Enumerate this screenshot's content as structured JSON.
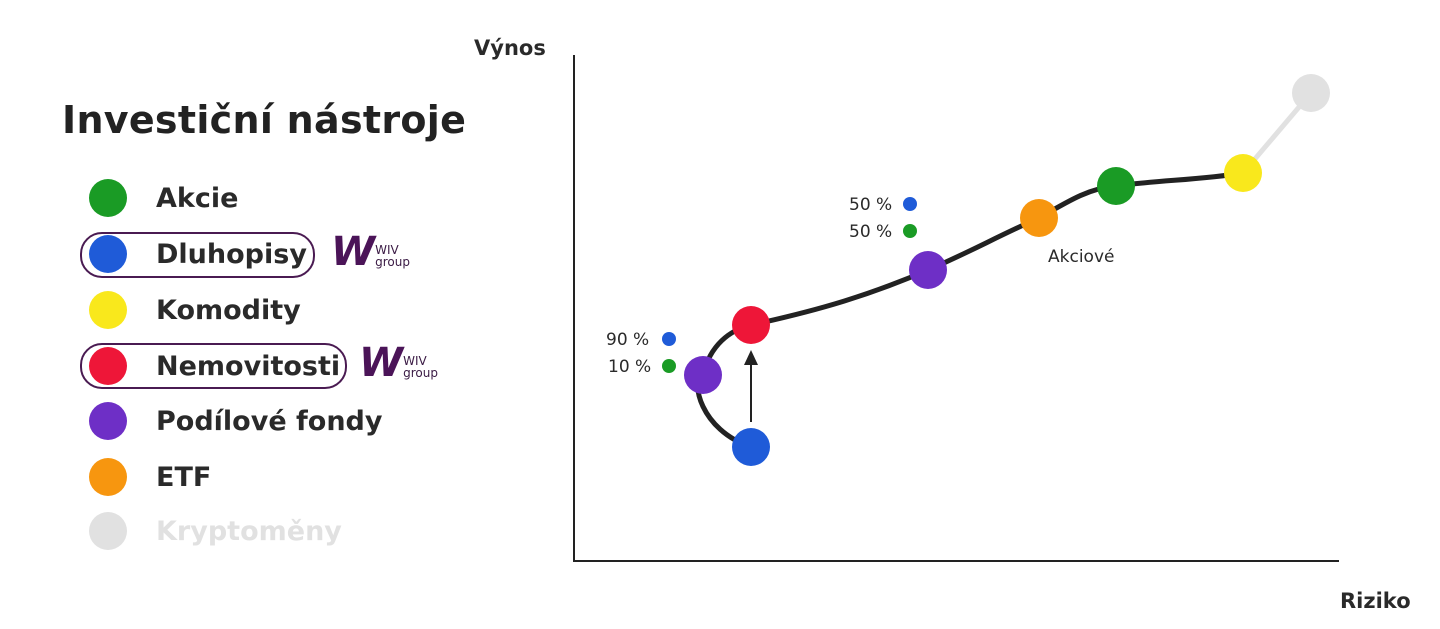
{
  "legend": {
    "title": "Investiční nástroje",
    "items": [
      {
        "label": "Akcie",
        "color": "#1a9b25"
      },
      {
        "label": "Dluhopisy",
        "color": "#1f5bd8",
        "highlighted": true
      },
      {
        "label": "Komodity",
        "color": "#f9e81c"
      },
      {
        "label": "Nemovitosti",
        "color": "#ee1638",
        "highlighted": true
      },
      {
        "label": "Podílové fondy",
        "color": "#6e2fc6"
      },
      {
        "label": "ETF",
        "color": "#f7960f"
      },
      {
        "label": "Kryptoměny",
        "color": "#e1e1e1",
        "faded": true
      }
    ],
    "logo": {
      "mark": "W",
      "text1": "WIV",
      "text2": "group"
    }
  },
  "diagram": {
    "y_axis_label": "Výnos",
    "x_axis_label": "Riziko",
    "mix1": {
      "pct_bonds": "90 %",
      "pct_stocks": "10 %"
    },
    "mix2": {
      "pct_bonds": "50 %",
      "pct_stocks": "50 %"
    },
    "etf_label": "Akciové"
  }
}
